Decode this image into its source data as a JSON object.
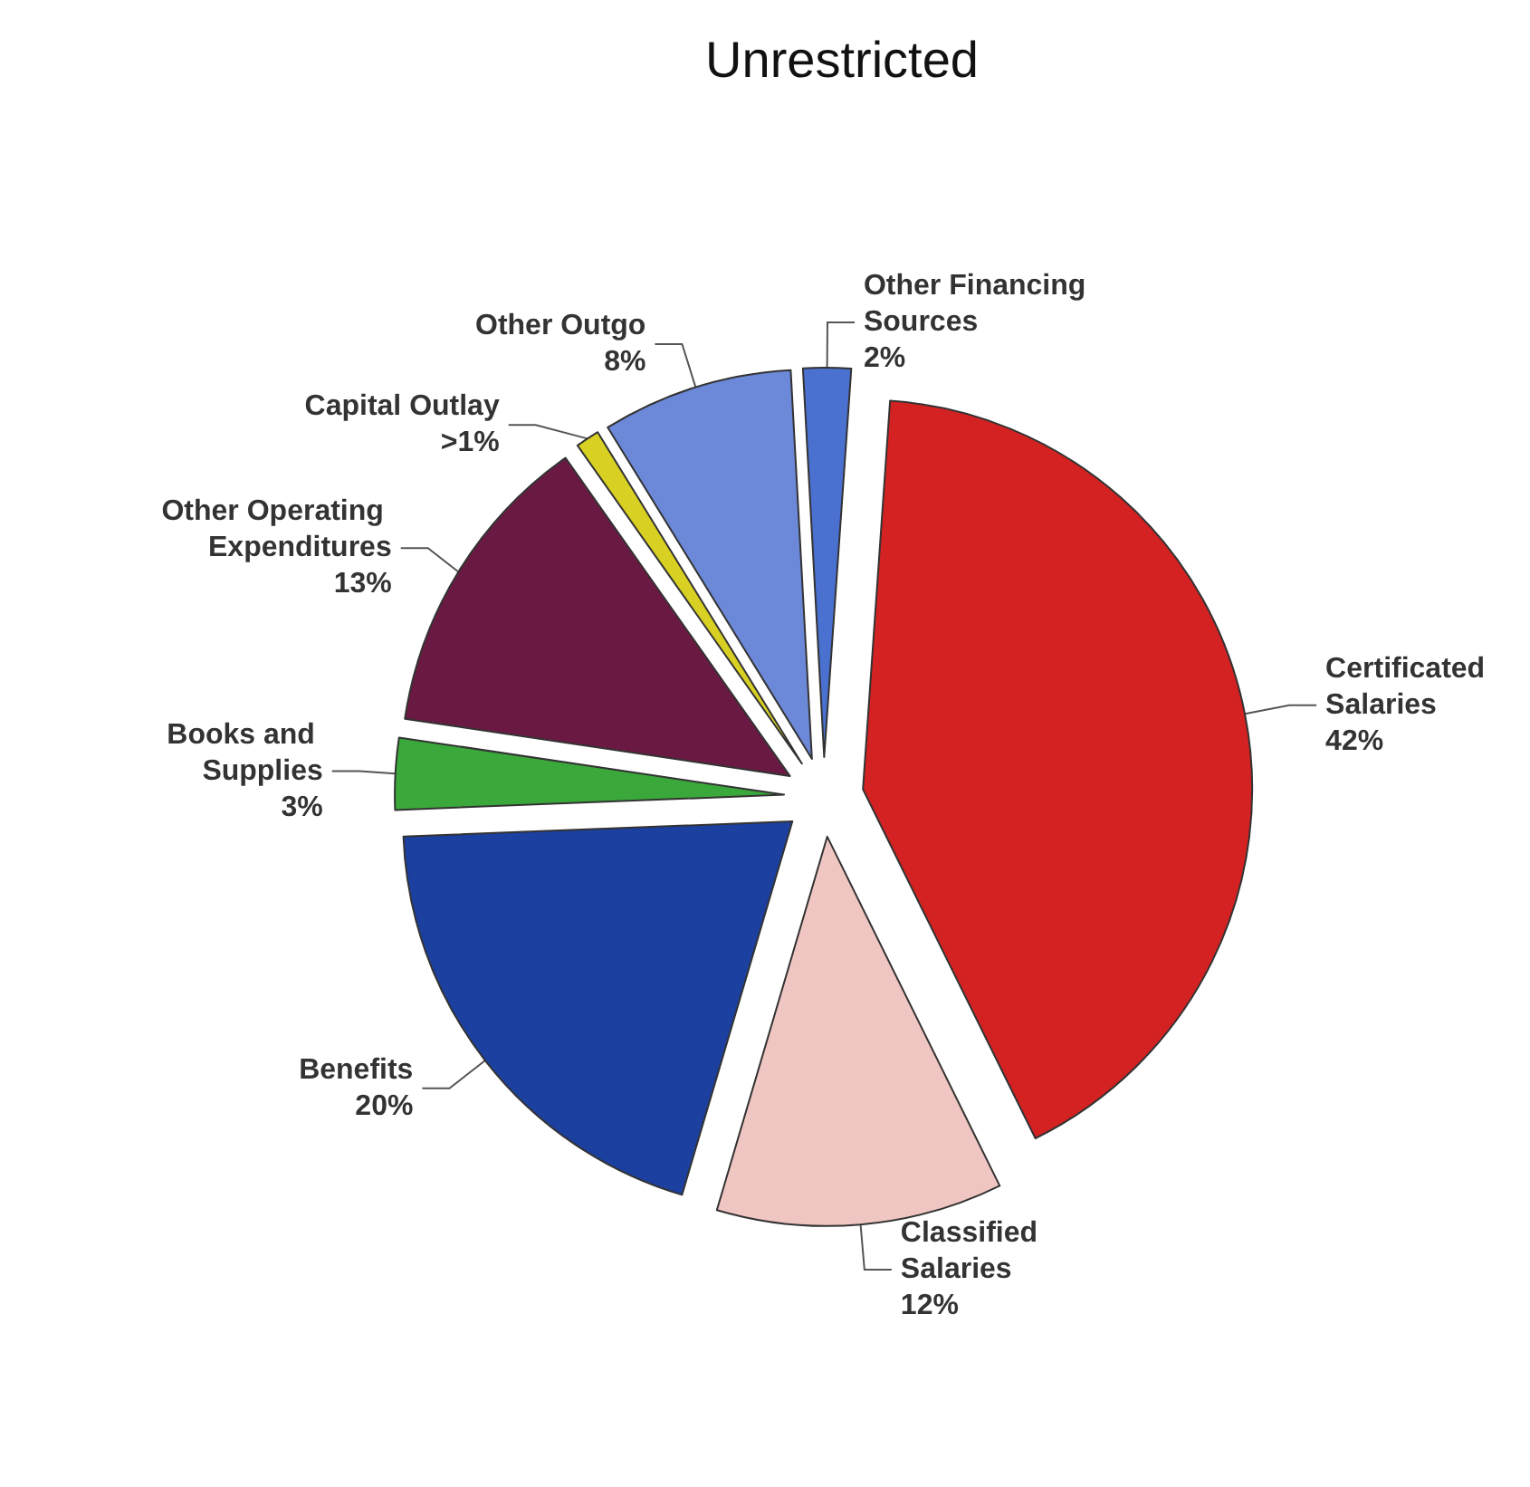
{
  "chart_data": {
    "type": "pie",
    "title": "Unrestricted",
    "categories": [
      "Certificated Salaries",
      "Classified Salaries",
      "Benefits",
      "Books and Supplies",
      "Other Operating Expenditures",
      "Capital Outlay",
      "Other Outgo",
      "Other Financing Sources"
    ],
    "values": [
      42,
      12,
      20,
      3,
      13,
      1,
      8,
      2
    ],
    "value_labels": [
      "42%",
      "12%",
      "20%",
      "3%",
      "13%",
      ">1%",
      "8%",
      "2%"
    ],
    "colors": [
      "#d42222",
      "#f0c6c2",
      "#1c40a0",
      "#3aa83a",
      "#6a1a42",
      "#d8d022",
      "#6c88d8",
      "#4a70d0"
    ],
    "legend": false
  }
}
